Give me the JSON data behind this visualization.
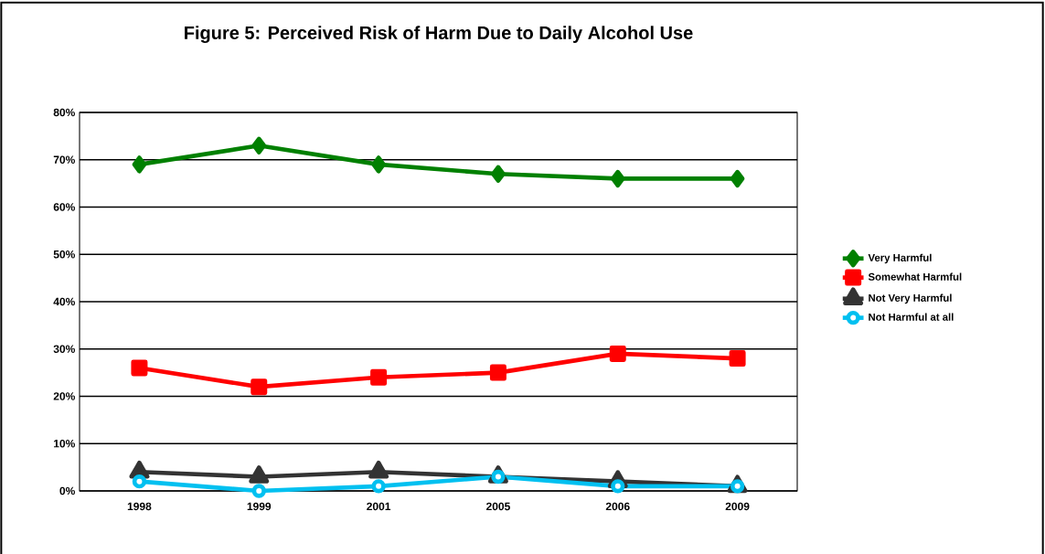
{
  "chart_data": {
    "type": "line",
    "title": "Figure 5:  Perceived Risk of Harm Due to Daily Alcohol Use",
    "categories": [
      "1998",
      "1999",
      "2001",
      "2005",
      "2006",
      "2009"
    ],
    "series": [
      {
        "name": "Very Harmful",
        "color": "#008000",
        "marker": "diamond",
        "values": [
          69,
          73,
          69,
          67,
          66,
          66
        ]
      },
      {
        "name": "Somewhat Harmful",
        "color": "#ff0000",
        "marker": "square",
        "values": [
          26,
          22,
          24,
          25,
          29,
          28
        ]
      },
      {
        "name": "Not Very Harmful",
        "color": "#333333",
        "marker": "triangle",
        "values": [
          4,
          3,
          4,
          3,
          2,
          1
        ]
      },
      {
        "name": "Not Harmful at all",
        "color": "#00c0f0",
        "marker": "circle",
        "values": [
          2,
          0,
          1,
          3,
          1,
          1
        ]
      }
    ],
    "ylim": [
      0,
      80
    ],
    "yticks": [
      {
        "value": 0,
        "label": "0%"
      },
      {
        "value": 10,
        "label": "10%"
      },
      {
        "value": 20,
        "label": "20%"
      },
      {
        "value": 30,
        "label": "30%"
      },
      {
        "value": 40,
        "label": "40%"
      },
      {
        "value": 50,
        "label": "50%"
      },
      {
        "value": 60,
        "label": "60%"
      },
      {
        "value": 70,
        "label": "70%"
      },
      {
        "value": 80,
        "label": "80%"
      }
    ],
    "grid": "y",
    "legend": "right",
    "line_style": "solid"
  }
}
